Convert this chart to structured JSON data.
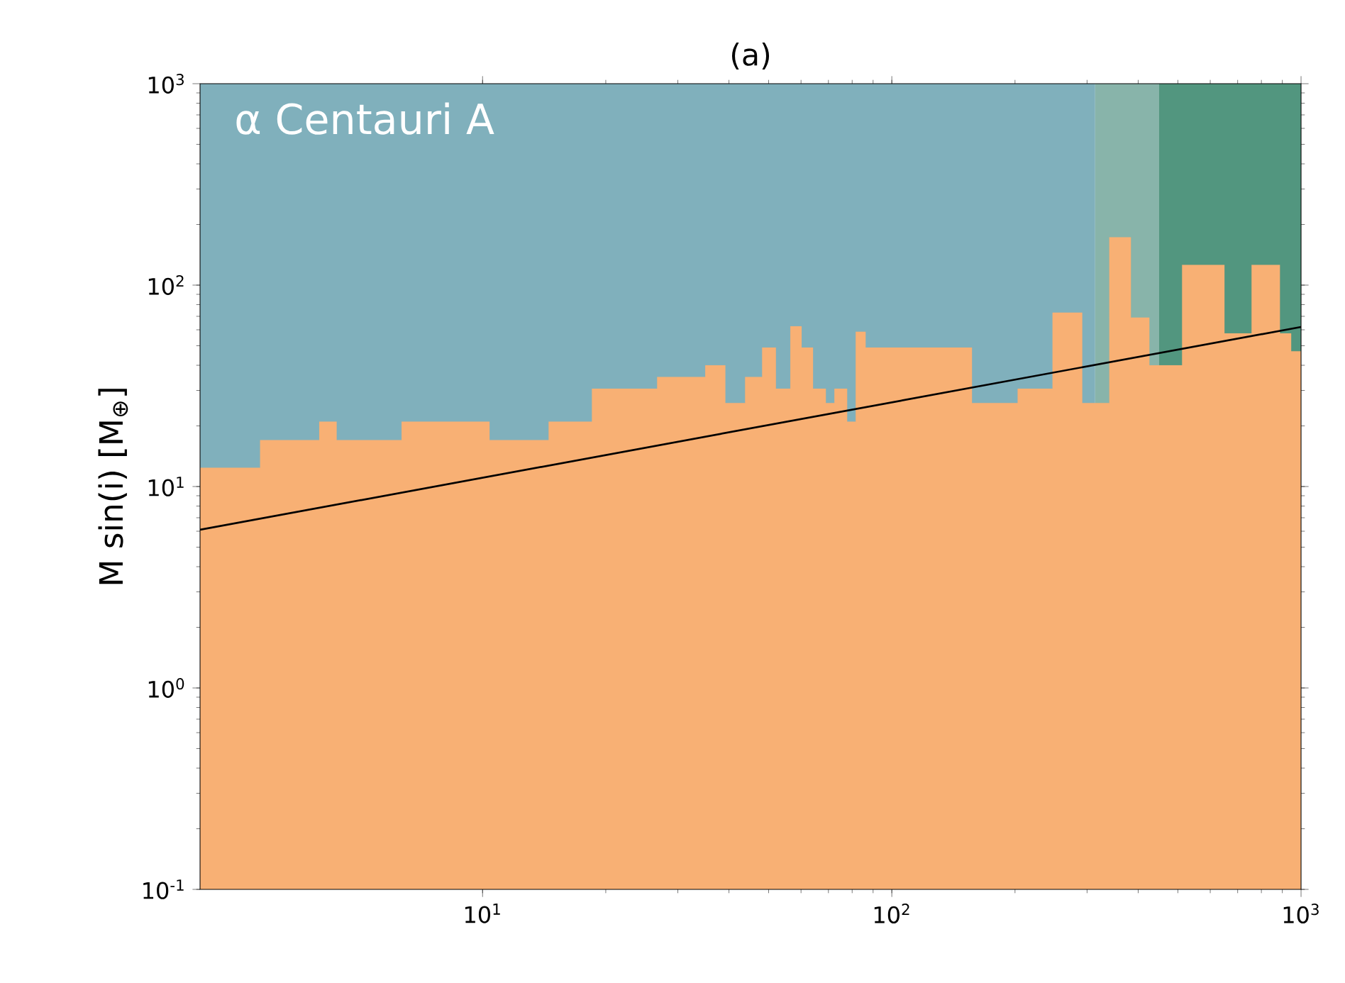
{
  "chart_data": {
    "type": "area",
    "title": "(a)",
    "ylabel": "M sin(i) [M$_{⊕}$]",
    "annotations": [
      "α Centauri A"
    ],
    "log": "xy",
    "xlim": [
      2.04,
      1000
    ],
    "ylim": [
      0.1,
      1000
    ],
    "xticks": [
      {
        "value": 10,
        "label": "10$^{1}$"
      },
      {
        "value": 100,
        "label": "10$^{2}$"
      },
      {
        "value": 1000,
        "label": "10$^{3}$"
      }
    ],
    "yticks": [
      {
        "value": 0.1,
        "label": "10$^{-1}$"
      },
      {
        "value": 1,
        "label": "10$^{0}$"
      },
      {
        "value": 10,
        "label": "10$^{1}$"
      },
      {
        "value": 100,
        "label": "10$^{2}$"
      },
      {
        "value": 1000,
        "label": "10$^{3}$"
      }
    ],
    "bands": [
      {
        "axis": "x",
        "from": 2.04,
        "to": 314,
        "color": "#80b0bc"
      },
      {
        "axis": "x",
        "from": 314,
        "to": 450,
        "color": "#88b4aa"
      },
      {
        "axis": "x",
        "from": 450,
        "to": 1000,
        "color": "#52967f"
      }
    ],
    "series": [
      {
        "color": "#f8b074",
        "x": [
          2.04,
          2.86,
          3.99,
          4.4,
          6.34,
          10.4,
          14.5,
          18.5,
          26.7,
          35.0,
          39.2,
          43.8,
          48.2,
          52.1,
          56.5,
          60.2,
          64.2,
          69.0,
          72.4,
          77.8,
          81.6,
          86.3,
          157,
          203,
          247,
          292,
          340,
          384,
          426,
          512,
          650,
          757,
          888,
          946,
          1000
        ],
        "values": [
          12.4,
          17,
          21,
          17,
          21,
          17,
          21,
          30.6,
          35,
          40,
          26,
          35,
          49,
          30.6,
          62.5,
          49,
          30.6,
          26,
          30.6,
          21,
          58.7,
          49,
          26,
          30.6,
          73,
          26,
          173,
          69,
          40,
          126,
          57.6,
          126,
          57.6,
          47,
          47
        ]
      },
      {
        "type": "line",
        "color": "#000000",
        "x": [
          2.04,
          1000
        ],
        "values": [
          6.1,
          62
        ]
      }
    ]
  }
}
